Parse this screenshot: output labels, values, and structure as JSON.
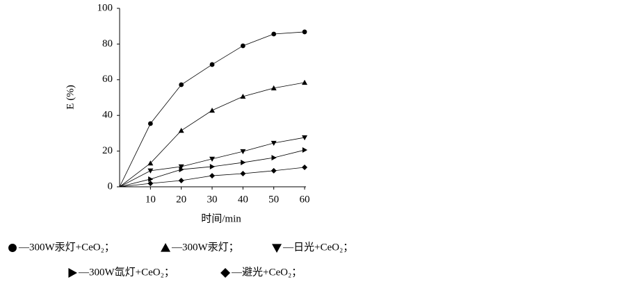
{
  "chart_data": {
    "type": "line",
    "x_label": "时间/min",
    "y_label": "E (%)",
    "x": [
      0,
      10,
      20,
      30,
      40,
      50,
      60
    ],
    "series": [
      {
        "name": "—300W汞灯+CeO₂；",
        "marker": "circle",
        "color": "#000000",
        "values": [
          0,
          35.4,
          57.2,
          68.5,
          79,
          85.6,
          86.8
        ]
      },
      {
        "name": "—300W汞灯；",
        "marker": "triangle-up",
        "color": "#000000",
        "values": [
          0,
          13.2,
          31.5,
          42.8,
          50.6,
          55.3,
          58.4
        ]
      },
      {
        "name": "—日光+CeO₂；",
        "marker": "triangle-down",
        "color": "#000000",
        "values": [
          0,
          9,
          11.3,
          15.6,
          19.8,
          24.5,
          27.6
        ]
      },
      {
        "name": "—300W氙灯+CeO₂；",
        "marker": "triangle-right",
        "color": "#000000",
        "values": [
          0,
          4.3,
          9.7,
          11.3,
          13.6,
          16.3,
          20.6
        ]
      },
      {
        "name": "—避光+CeO₂；",
        "marker": "diamond",
        "color": "#000000",
        "values": [
          0,
          1.9,
          3.5,
          6.2,
          7.4,
          9,
          10.9
        ]
      }
    ],
    "xlim": [
      0,
      60
    ],
    "xticks": [
      10,
      20,
      30,
      40,
      50,
      60
    ],
    "ylim": [
      0,
      100
    ],
    "yticks": [
      0,
      20,
      40,
      60,
      80,
      100
    ],
    "grid": false
  }
}
